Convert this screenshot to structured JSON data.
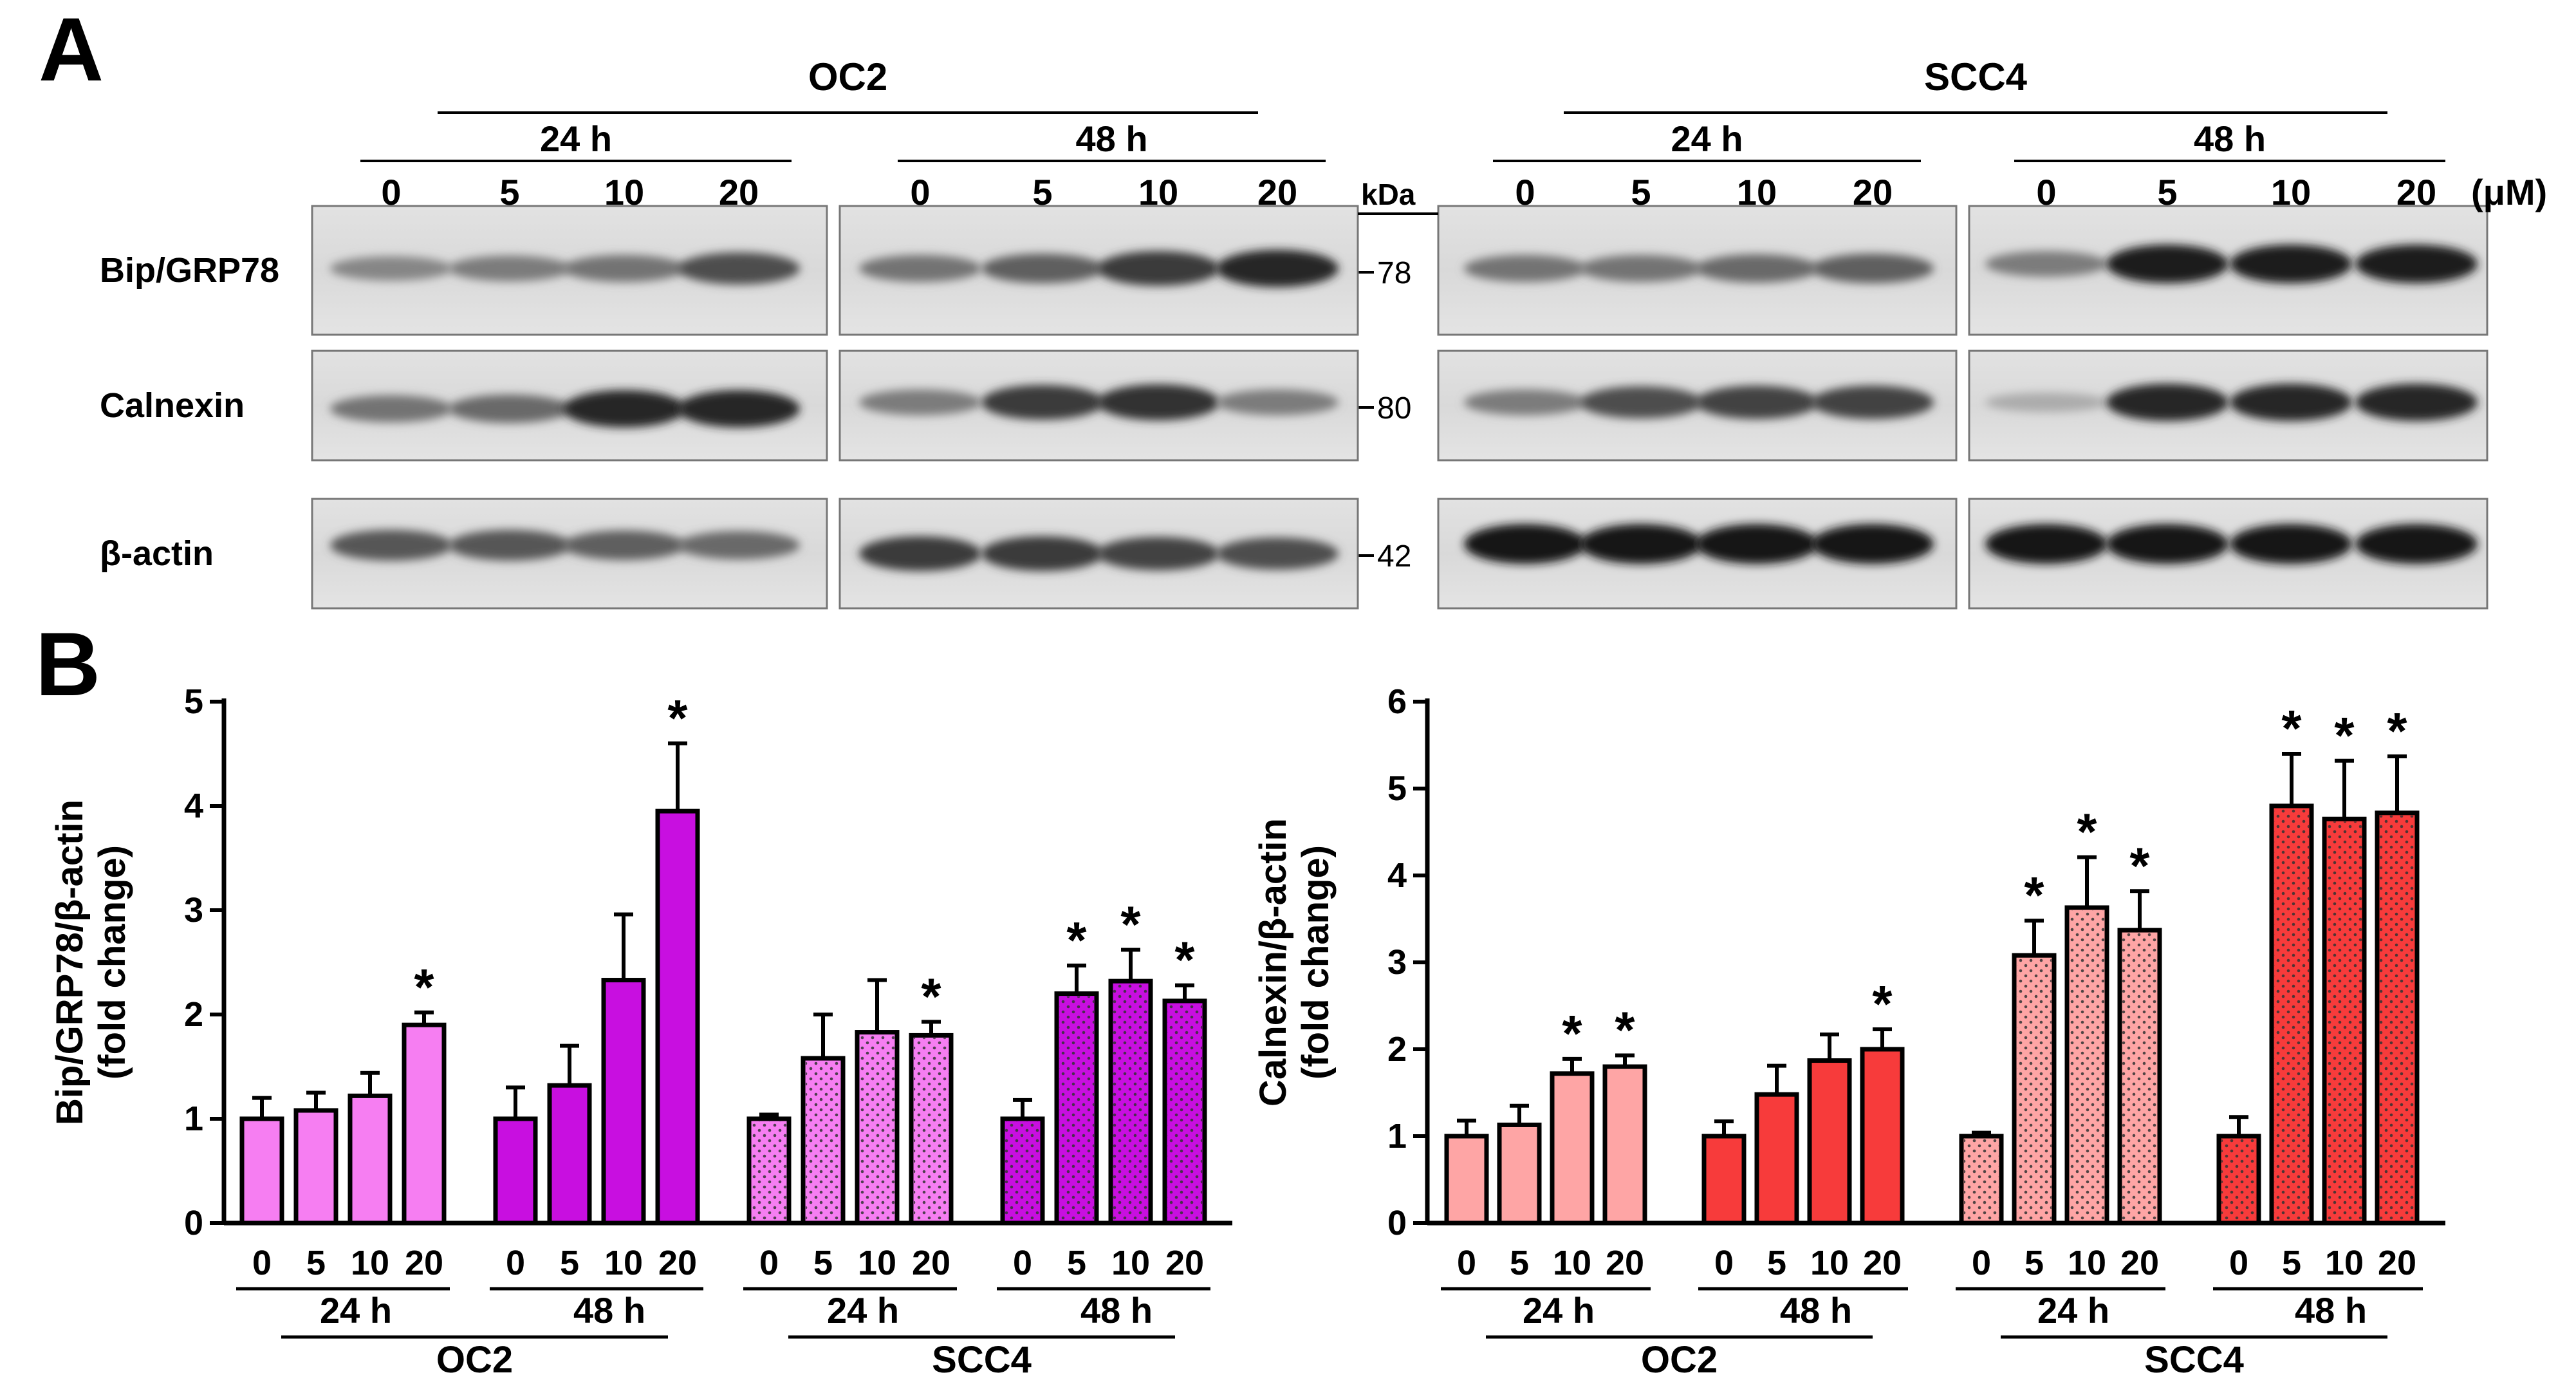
{
  "panel_a": {
    "label": "A",
    "cell_lines": [
      "OC2",
      "SCC4"
    ],
    "times": [
      "24 h",
      "48 h"
    ],
    "doses": [
      "0",
      "5",
      "10",
      "20"
    ],
    "dose_unit": "(μM)",
    "kda_header": "kDa",
    "proteins": [
      {
        "name": "Bip/GRP78",
        "kda": "78"
      },
      {
        "name": "Calnexin",
        "kda": "80"
      },
      {
        "name": "β-actin",
        "kda": "42"
      }
    ],
    "band_intensity": {
      "Bip/GRP78": [
        [
          0.35,
          0.4,
          0.45,
          0.65
        ],
        [
          0.45,
          0.55,
          0.75,
          0.85
        ],
        [
          0.45,
          0.45,
          0.5,
          0.55
        ],
        [
          0.4,
          0.9,
          0.9,
          0.9
        ]
      ],
      "Calnexin": [
        [
          0.45,
          0.5,
          0.85,
          0.85
        ],
        [
          0.4,
          0.75,
          0.8,
          0.4
        ],
        [
          0.4,
          0.65,
          0.7,
          0.7
        ],
        [
          0.15,
          0.85,
          0.85,
          0.85
        ]
      ],
      "β-actin": [
        [
          0.6,
          0.6,
          0.55,
          0.5
        ],
        [
          0.75,
          0.75,
          0.7,
          0.65
        ],
        [
          0.95,
          0.95,
          0.95,
          0.95
        ],
        [
          0.95,
          0.95,
          0.95,
          0.95
        ]
      ]
    }
  },
  "panel_b": {
    "label": "B",
    "asterisk": "*"
  },
  "chart_data": [
    {
      "type": "bar",
      "title": "",
      "ylabel": "Bip/GRP78/β-actin (fold change)",
      "ylabel_line1": "Bip/GRP78/β-actin",
      "ylabel_line2": "(fold change)",
      "ylim": [
        0,
        5
      ],
      "yticks": [
        "0",
        "1",
        "2",
        "3",
        "4",
        "5"
      ],
      "groups": [
        {
          "cell_line": "OC2",
          "time": "24 h",
          "color": "#f67ef2",
          "pattern": "solid",
          "doses": [
            "0",
            "5",
            "10",
            "20"
          ],
          "values": [
            1.0,
            1.08,
            1.22,
            1.9
          ],
          "errors": [
            0.2,
            0.17,
            0.22,
            0.12
          ],
          "significant": [
            false,
            false,
            false,
            true
          ]
        },
        {
          "cell_line": "OC2",
          "time": "48 h",
          "color": "#c80fe0",
          "pattern": "solid",
          "doses": [
            "0",
            "5",
            "10",
            "20"
          ],
          "values": [
            1.0,
            1.32,
            2.33,
            3.95
          ],
          "errors": [
            0.3,
            0.38,
            0.63,
            0.65
          ],
          "significant": [
            false,
            false,
            false,
            true
          ]
        },
        {
          "cell_line": "SCC4",
          "time": "24 h",
          "color": "#f67ef2",
          "pattern": "dotted",
          "doses": [
            "0",
            "5",
            "10",
            "20"
          ],
          "values": [
            1.0,
            1.58,
            1.83,
            1.8
          ],
          "errors": [
            0.04,
            0.42,
            0.5,
            0.13
          ],
          "significant": [
            false,
            false,
            false,
            true
          ]
        },
        {
          "cell_line": "SCC4",
          "time": "48 h",
          "color": "#c80fe0",
          "pattern": "dotted",
          "doses": [
            "0",
            "5",
            "10",
            "20"
          ],
          "values": [
            1.0,
            2.2,
            2.32,
            2.13
          ],
          "errors": [
            0.18,
            0.27,
            0.3,
            0.15
          ],
          "significant": [
            false,
            true,
            true,
            true
          ]
        }
      ]
    },
    {
      "type": "bar",
      "title": "",
      "ylabel": "Calnexin/β-actin (fold change)",
      "ylabel_line1": "Calnexin/β-actin",
      "ylabel_line2": "(fold change)",
      "ylim": [
        0,
        6
      ],
      "yticks": [
        "0",
        "1",
        "2",
        "3",
        "4",
        "5",
        "6"
      ],
      "groups": [
        {
          "cell_line": "OC2",
          "time": "24 h",
          "color": "#fea5a5",
          "pattern": "solid",
          "doses": [
            "0",
            "5",
            "10",
            "20"
          ],
          "values": [
            1.0,
            1.13,
            1.72,
            1.8
          ],
          "errors": [
            0.18,
            0.22,
            0.17,
            0.13
          ],
          "significant": [
            false,
            false,
            true,
            true
          ]
        },
        {
          "cell_line": "OC2",
          "time": "48 h",
          "color": "#f73b3b",
          "pattern": "solid",
          "doses": [
            "0",
            "5",
            "10",
            "20"
          ],
          "values": [
            1.0,
            1.48,
            1.87,
            2.0
          ],
          "errors": [
            0.17,
            0.33,
            0.3,
            0.23
          ],
          "significant": [
            false,
            false,
            false,
            true
          ]
        },
        {
          "cell_line": "SCC4",
          "time": "24 h",
          "color": "#fea5a5",
          "pattern": "dotted",
          "doses": [
            "0",
            "5",
            "10",
            "20"
          ],
          "values": [
            1.0,
            3.08,
            3.63,
            3.37
          ],
          "errors": [
            0.04,
            0.4,
            0.58,
            0.45
          ],
          "significant": [
            false,
            true,
            true,
            true
          ]
        },
        {
          "cell_line": "SCC4",
          "time": "48 h",
          "color": "#f73b3b",
          "pattern": "dotted",
          "doses": [
            "0",
            "5",
            "10",
            "20"
          ],
          "values": [
            1.0,
            4.8,
            4.65,
            4.72
          ],
          "errors": [
            0.22,
            0.6,
            0.67,
            0.65
          ],
          "significant": [
            false,
            true,
            true,
            true
          ]
        }
      ]
    }
  ]
}
